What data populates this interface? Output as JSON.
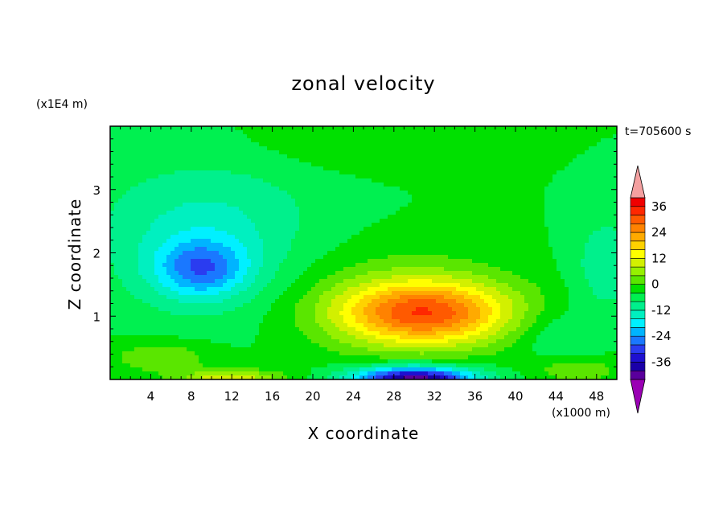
{
  "chart_data": {
    "type": "heatmap",
    "title": "zonal velocity",
    "xlabel": "X coordinate",
    "ylabel": "Z coordinate",
    "x_unit": "(x1000 m)",
    "y_unit": "(x1E4 m)",
    "time_label": "t=705600 s",
    "xlim": [
      0,
      50
    ],
    "ylim": [
      0,
      4
    ],
    "x_ticks": [
      4,
      8,
      12,
      16,
      20,
      24,
      28,
      32,
      36,
      40,
      44,
      48
    ],
    "y_ticks": [
      1,
      2,
      3
    ],
    "colorbar": {
      "levels": [
        -40,
        -36,
        -32,
        -28,
        -24,
        -20,
        -16,
        -12,
        -8,
        -4,
        0,
        4,
        8,
        12,
        16,
        20,
        24,
        28,
        32,
        36,
        40
      ],
      "labeled_levels": [
        36,
        24,
        12,
        0,
        -12,
        -24,
        -36
      ],
      "colors": [
        "#5a009c",
        "#1a00a8",
        "#1e10d0",
        "#2a3cf0",
        "#1a78ff",
        "#00b4ff",
        "#00f0ff",
        "#00f0c0",
        "#00f08c",
        "#00f050",
        "#00e000",
        "#5ae600",
        "#96f000",
        "#d2f000",
        "#ffff00",
        "#ffd200",
        "#ffaa00",
        "#ff8200",
        "#ff5a00",
        "#ff2800",
        "#f00000"
      ],
      "over_color": "#f4a0a0",
      "under_color": "#9a00b4"
    },
    "field": {
      "baseline": 0,
      "features": [
        {
          "type": "jet",
          "x": 31,
          "z": 1.05,
          "amp": 31,
          "sx": 8.5,
          "sz": 0.5
        },
        {
          "type": "jet_wide",
          "x": 29,
          "z": 1.25,
          "amp": 6,
          "sx": 11,
          "sz": 0.9
        },
        {
          "type": "negative",
          "x": 30,
          "z": 0.0,
          "amp": -40,
          "sx": 6,
          "sz": 0.2
        },
        {
          "type": "negative",
          "x": 9,
          "z": 1.75,
          "amp": -17,
          "sx": 4.5,
          "sz": 0.45
        },
        {
          "type": "negative_wide",
          "x": 9,
          "z": 1.9,
          "amp": -7,
          "sx": 9,
          "sz": 1.0
        },
        {
          "type": "negative_upper",
          "x": 10,
          "z": 2.7,
          "amp": -5,
          "sx": 12,
          "sz": 0.9
        },
        {
          "type": "positive_surface",
          "x": 12,
          "z": 0.0,
          "amp": 16,
          "sx": 5,
          "sz": 0.15
        },
        {
          "type": "positive_surface",
          "x": 5,
          "z": 0.35,
          "amp": 8,
          "sx": 5,
          "sz": 0.25
        },
        {
          "type": "positive_surface",
          "x": 46,
          "z": 0.15,
          "amp": 8,
          "sx": 4,
          "sz": 0.2
        },
        {
          "type": "negative_right",
          "x": 49,
          "z": 1.8,
          "amp": -7,
          "sx": 3.5,
          "sz": 0.8
        },
        {
          "type": "negative_right",
          "x": 44,
          "z": 0.7,
          "amp": -5,
          "sx": 4,
          "sz": 0.4
        },
        {
          "type": "upper_green",
          "x": 25,
          "z": 3.8,
          "amp": 4,
          "sx": 10,
          "sz": 0.5
        }
      ]
    }
  }
}
